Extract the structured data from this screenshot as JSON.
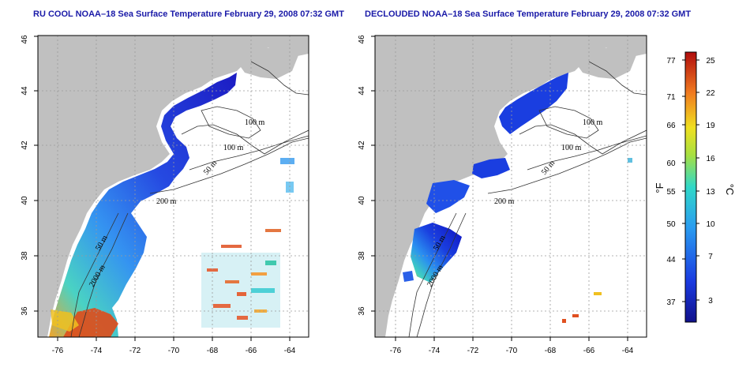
{
  "panels": [
    {
      "title": "RU COOL NOAA–18 Sea Surface Temperature February 29, 2008 07:32 GMT",
      "x_ticks": [
        "-76",
        "-74",
        "-72",
        "-70",
        "-68",
        "-66",
        "-64"
      ],
      "y_ticks": [
        "36",
        "38",
        "40",
        "42",
        "44",
        "46"
      ],
      "isobath_labels": [
        "100 m",
        "100 m",
        "50 m",
        "200 m",
        "50 m",
        "2000 m"
      ]
    },
    {
      "title": "DECLOUDED NOAA–18 Sea Surface Temperature February 29, 2008 07:32 GMT",
      "x_ticks": [
        "-76",
        "-74",
        "-72",
        "-70",
        "-68",
        "-66",
        "-64"
      ],
      "y_ticks": [
        "36",
        "38",
        "40",
        "42",
        "44",
        "46"
      ],
      "isobath_labels": [
        "100 m",
        "100 m",
        "50 m",
        "200 m",
        "50 m",
        "2000 m"
      ]
    }
  ],
  "colorbar": {
    "fahrenheit_label": "°F",
    "celsius_label": "°C",
    "fahrenheit_ticks": [
      "77",
      "71",
      "66",
      "60",
      "55",
      "50",
      "44",
      "37"
    ],
    "celsius_ticks": [
      "25",
      "22",
      "19",
      "16",
      "13",
      "10",
      "7",
      "3"
    ],
    "colors": [
      "#1010a0",
      "#1a4fe0",
      "#2aa0f0",
      "#30d8d0",
      "#a0e040",
      "#f0e020",
      "#f08020",
      "#c01010"
    ]
  },
  "colors": {
    "land": "#c0c0c0",
    "title": "#1a1aa8",
    "grid": "#9a9a9a"
  }
}
